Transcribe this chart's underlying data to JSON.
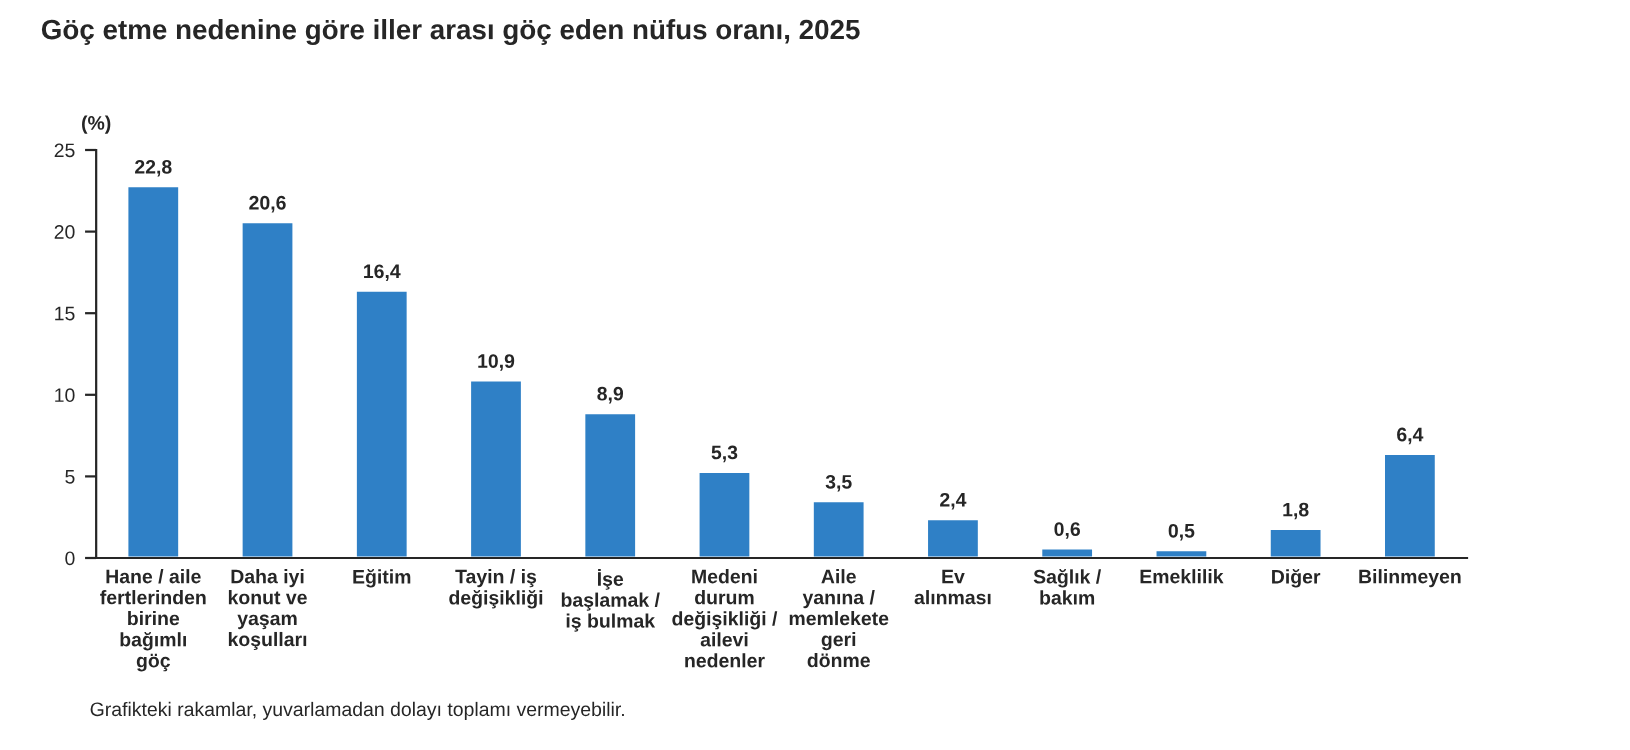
{
  "chart_data": {
    "type": "bar",
    "title": "Göç etme nedenine göre iller arası göç eden nüfus oranı, 2025",
    "ylabel": "(%)",
    "categories": [
      "Hane / aile\nfertlerinden\nbirine\nbağımlı\ngöç",
      "Daha iyi\nkonut ve\nyaşam\nkoşulları",
      "Eğitim",
      "Tayin / iş\ndeğişikliği",
      "İşe\nbaşlamak /\niş bulmak",
      "Medeni\ndurum\ndeğişikliği /\nailevi\nnedenler",
      "Aile\nyanına /\nmemlekete\ngeri\ndönme",
      "Ev\nalınması",
      "Sağlık /\nbakım",
      "Emeklilik",
      "Diğer",
      "Bilinmeyen"
    ],
    "values": [
      22.8,
      20.6,
      16.4,
      10.9,
      8.9,
      5.3,
      3.5,
      2.4,
      0.6,
      0.5,
      1.8,
      6.4
    ],
    "value_labels": [
      "22,8",
      "20,6",
      "16,4",
      "10,9",
      "8,9",
      "5,3",
      "3,5",
      "2,4",
      "0,6",
      "0,5",
      "1,8",
      "6,4"
    ],
    "color": "#2f80c6",
    "ylim": [
      0,
      25
    ],
    "yticks": [
      0,
      5,
      10,
      15,
      20,
      25
    ],
    "grid": false,
    "legend": false,
    "annotations": [
      "Grafikteki rakamlar, yuvarlamadan dolayı toplamı vermeyebilir."
    ]
  }
}
